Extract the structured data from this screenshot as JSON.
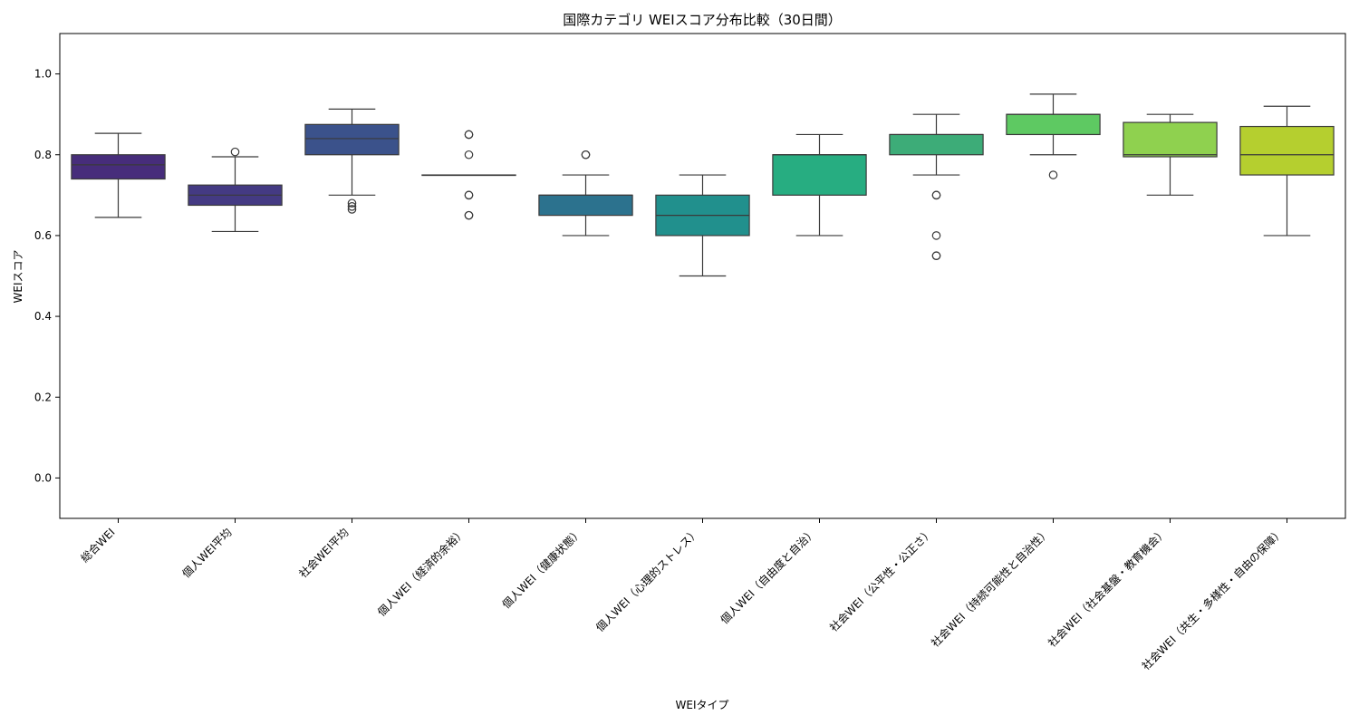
{
  "chart_data": {
    "type": "boxplot",
    "title": "国際カテゴリ WEIスコア分布比較（30日間）",
    "xlabel": "WEIタイプ",
    "ylabel": "WEIスコア",
    "ylim": [
      -0.1,
      1.1
    ],
    "yticks": [
      0.0,
      0.2,
      0.4,
      0.6,
      0.8,
      1.0
    ],
    "ytick_labels": [
      "0.0",
      "0.2",
      "0.4",
      "0.6",
      "0.8",
      "1.0"
    ],
    "grid": false,
    "categories": [
      "総合WEI",
      "個人WEI平均",
      "社会WEI平均",
      "個人WEI（経済的余裕）",
      "個人WEI（健康状態）",
      "個人WEI（心理的ストレス）",
      "個人WEI（自由度と自治）",
      "社会WEI（公平性・公正さ）",
      "社会WEI（持続可能性と自治性）",
      "社会WEI（社会基盤・教育機会）",
      "社会WEI（共生・多様性・自由の保障）"
    ],
    "boxes": [
      {
        "whislo": 0.645,
        "q1": 0.74,
        "med": 0.775,
        "q3": 0.8,
        "whishi": 0.853,
        "fliers": [],
        "color": "#472d7b"
      },
      {
        "whislo": 0.61,
        "q1": 0.675,
        "med": 0.7,
        "q3": 0.725,
        "whishi": 0.795,
        "fliers": [
          0.807
        ],
        "color": "#443a83"
      },
      {
        "whislo": 0.7,
        "q1": 0.8,
        "med": 0.84,
        "q3": 0.875,
        "whishi": 0.913,
        "fliers": [
          0.68,
          0.672,
          0.665
        ],
        "color": "#3b528b"
      },
      {
        "whislo": 0.75,
        "q1": 0.75,
        "med": 0.75,
        "q3": 0.75,
        "whishi": 0.75,
        "fliers": [
          0.85,
          0.85,
          0.8,
          0.7,
          0.7,
          0.65,
          0.65
        ],
        "color": "#31688e"
      },
      {
        "whislo": 0.6,
        "q1": 0.65,
        "med": 0.7,
        "q3": 0.7,
        "whishi": 0.75,
        "fliers": [
          0.8,
          0.8
        ],
        "color": "#2c728e"
      },
      {
        "whislo": 0.5,
        "q1": 0.6,
        "med": 0.65,
        "q3": 0.7,
        "whishi": 0.75,
        "fliers": [],
        "color": "#21908d"
      },
      {
        "whislo": 0.6,
        "q1": 0.7,
        "med": 0.8,
        "q3": 0.8,
        "whishi": 0.85,
        "fliers": [],
        "color": "#27ad81"
      },
      {
        "whislo": 0.75,
        "q1": 0.8,
        "med": 0.85,
        "q3": 0.85,
        "whishi": 0.9,
        "fliers": [
          0.7,
          0.7,
          0.6,
          0.55,
          0.55
        ],
        "color": "#3dac78"
      },
      {
        "whislo": 0.8,
        "q1": 0.85,
        "med": 0.9,
        "q3": 0.9,
        "whishi": 0.95,
        "fliers": [
          0.75
        ],
        "color": "#5ec962"
      },
      {
        "whislo": 0.7,
        "q1": 0.795,
        "med": 0.8,
        "q3": 0.88,
        "whishi": 0.9,
        "fliers": [],
        "color": "#8fd14f"
      },
      {
        "whislo": 0.6,
        "q1": 0.75,
        "med": 0.8,
        "q3": 0.87,
        "whishi": 0.92,
        "fliers": [],
        "color": "#b5cf2f"
      }
    ]
  }
}
